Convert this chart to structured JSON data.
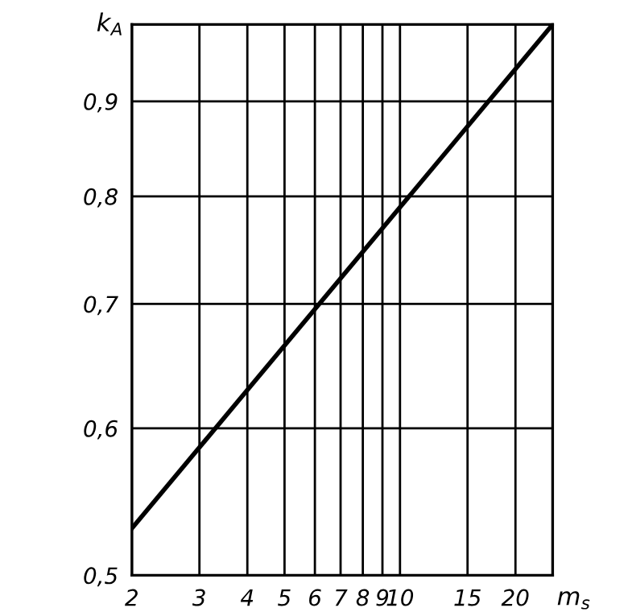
{
  "chart_data": {
    "type": "line",
    "xlabel": "m$_{s}$",
    "ylabel": "k$_{A}$",
    "x": [
      2,
      25
    ],
    "series": [
      {
        "color": "#000000",
        "values": [
          0.53,
          0.99
        ]
      }
    ],
    "log": "xy",
    "xlim": [
      2,
      25
    ],
    "ylim": [
      0.5,
      0.99
    ],
    "xticks": [
      2,
      3,
      4,
      5,
      6,
      7,
      8,
      9,
      10,
      15,
      20
    ],
    "yticks": [
      {
        "value": 0.5,
        "label": "0,5"
      },
      {
        "value": 0.6,
        "label": "0,6"
      },
      {
        "value": 0.7,
        "label": "0,7"
      },
      {
        "value": 0.8,
        "label": "0,8"
      },
      {
        "value": 0.9,
        "label": "0,9"
      }
    ],
    "grid": true,
    "marker": "none",
    "line_style": "solid"
  }
}
